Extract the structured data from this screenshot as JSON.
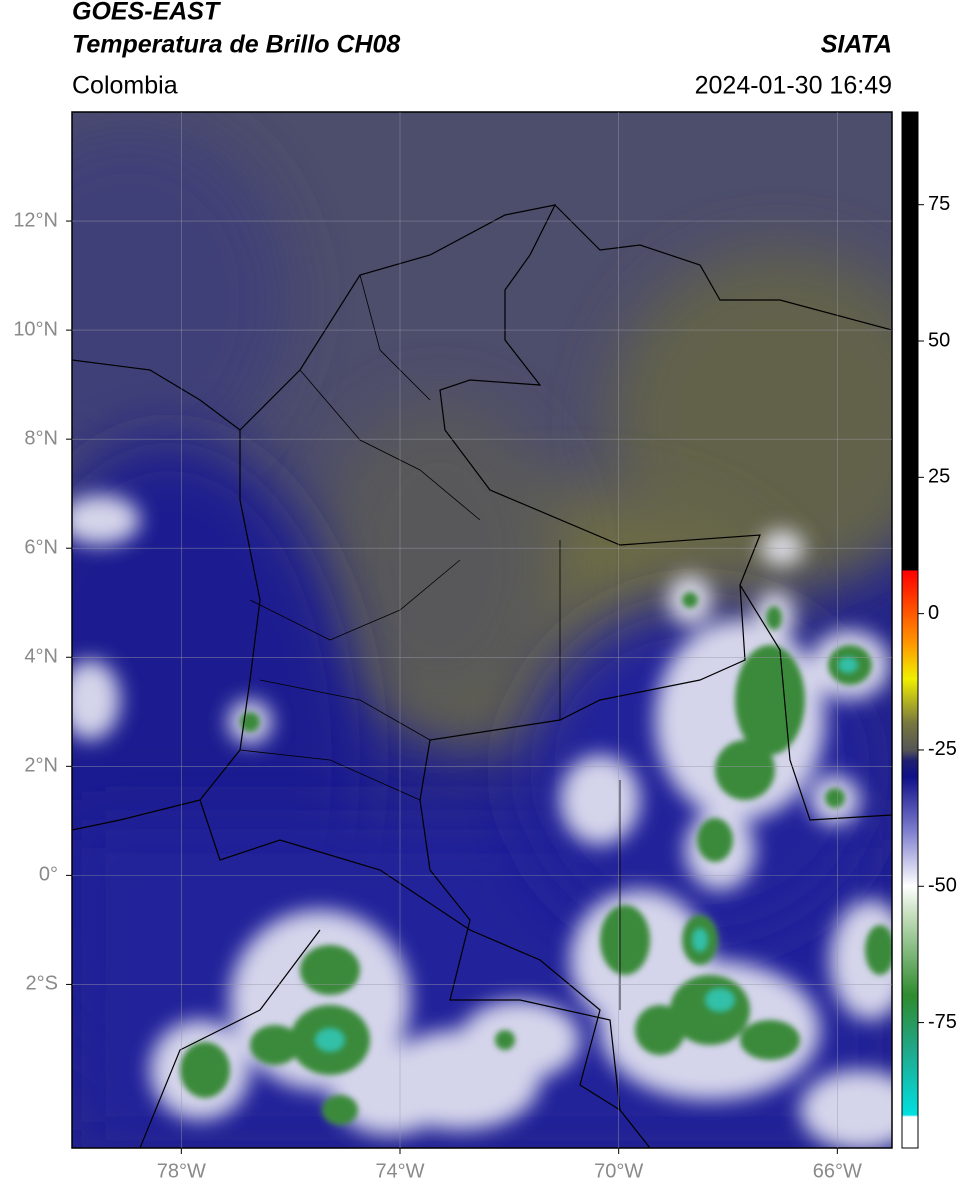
{
  "header": {
    "title": "GOES-EAST",
    "subtitle": "Temperatura de Brillo CH08",
    "region": "Colombia",
    "source": "SIATA",
    "datetime": "2024-01-30 16:49"
  },
  "map": {
    "xlim": [
      -80,
      -65
    ],
    "ylim": [
      -5,
      14
    ],
    "grid": true,
    "xticks": [
      {
        "value": -78,
        "label": "78°W"
      },
      {
        "value": -74,
        "label": "74°W"
      },
      {
        "value": -70,
        "label": "70°W"
      },
      {
        "value": -66,
        "label": "66°W"
      }
    ],
    "yticks": [
      {
        "value": 12,
        "label": "12°N"
      },
      {
        "value": 10,
        "label": "10°N"
      },
      {
        "value": 8,
        "label": "8°N"
      },
      {
        "value": 6,
        "label": "6°N"
      },
      {
        "value": 4,
        "label": "4°N"
      },
      {
        "value": 2,
        "label": "2°N"
      },
      {
        "value": 0,
        "label": "0°"
      },
      {
        "value": -2,
        "label": "2°S"
      }
    ]
  },
  "colorbar": {
    "lim": [
      -98,
      92
    ],
    "ticks": [
      75,
      50,
      25,
      0,
      -25,
      -50,
      -75
    ]
  }
}
